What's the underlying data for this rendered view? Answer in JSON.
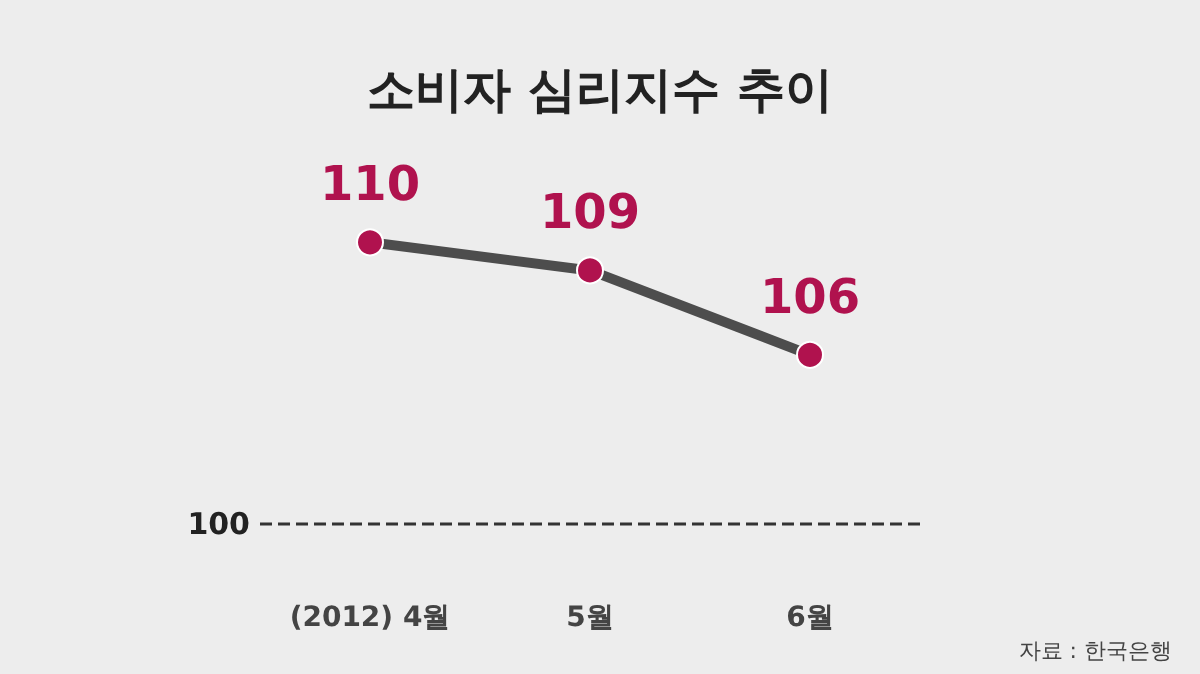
{
  "chart_data": {
    "type": "line",
    "title": "소비자 심리지수 추이",
    "categories": [
      "(2012) 4월",
      "5월",
      "6월"
    ],
    "series": [
      {
        "color": "#4d4d4d",
        "colors": [
          "#b0124e",
          "#b0124e",
          "#b0124e"
        ],
        "values": [
          110,
          109,
          106
        ]
      }
    ],
    "data_labels": true,
    "marker": "circle",
    "line_style": "solid",
    "tick_labels": "x",
    "grid": false,
    "ref_lines": [
      {
        "axis": "y",
        "value": 100,
        "label": "100",
        "color": "#333333",
        "line_style": "dashed"
      }
    ],
    "annotations": [
      "자료 : 한국은행"
    ]
  }
}
